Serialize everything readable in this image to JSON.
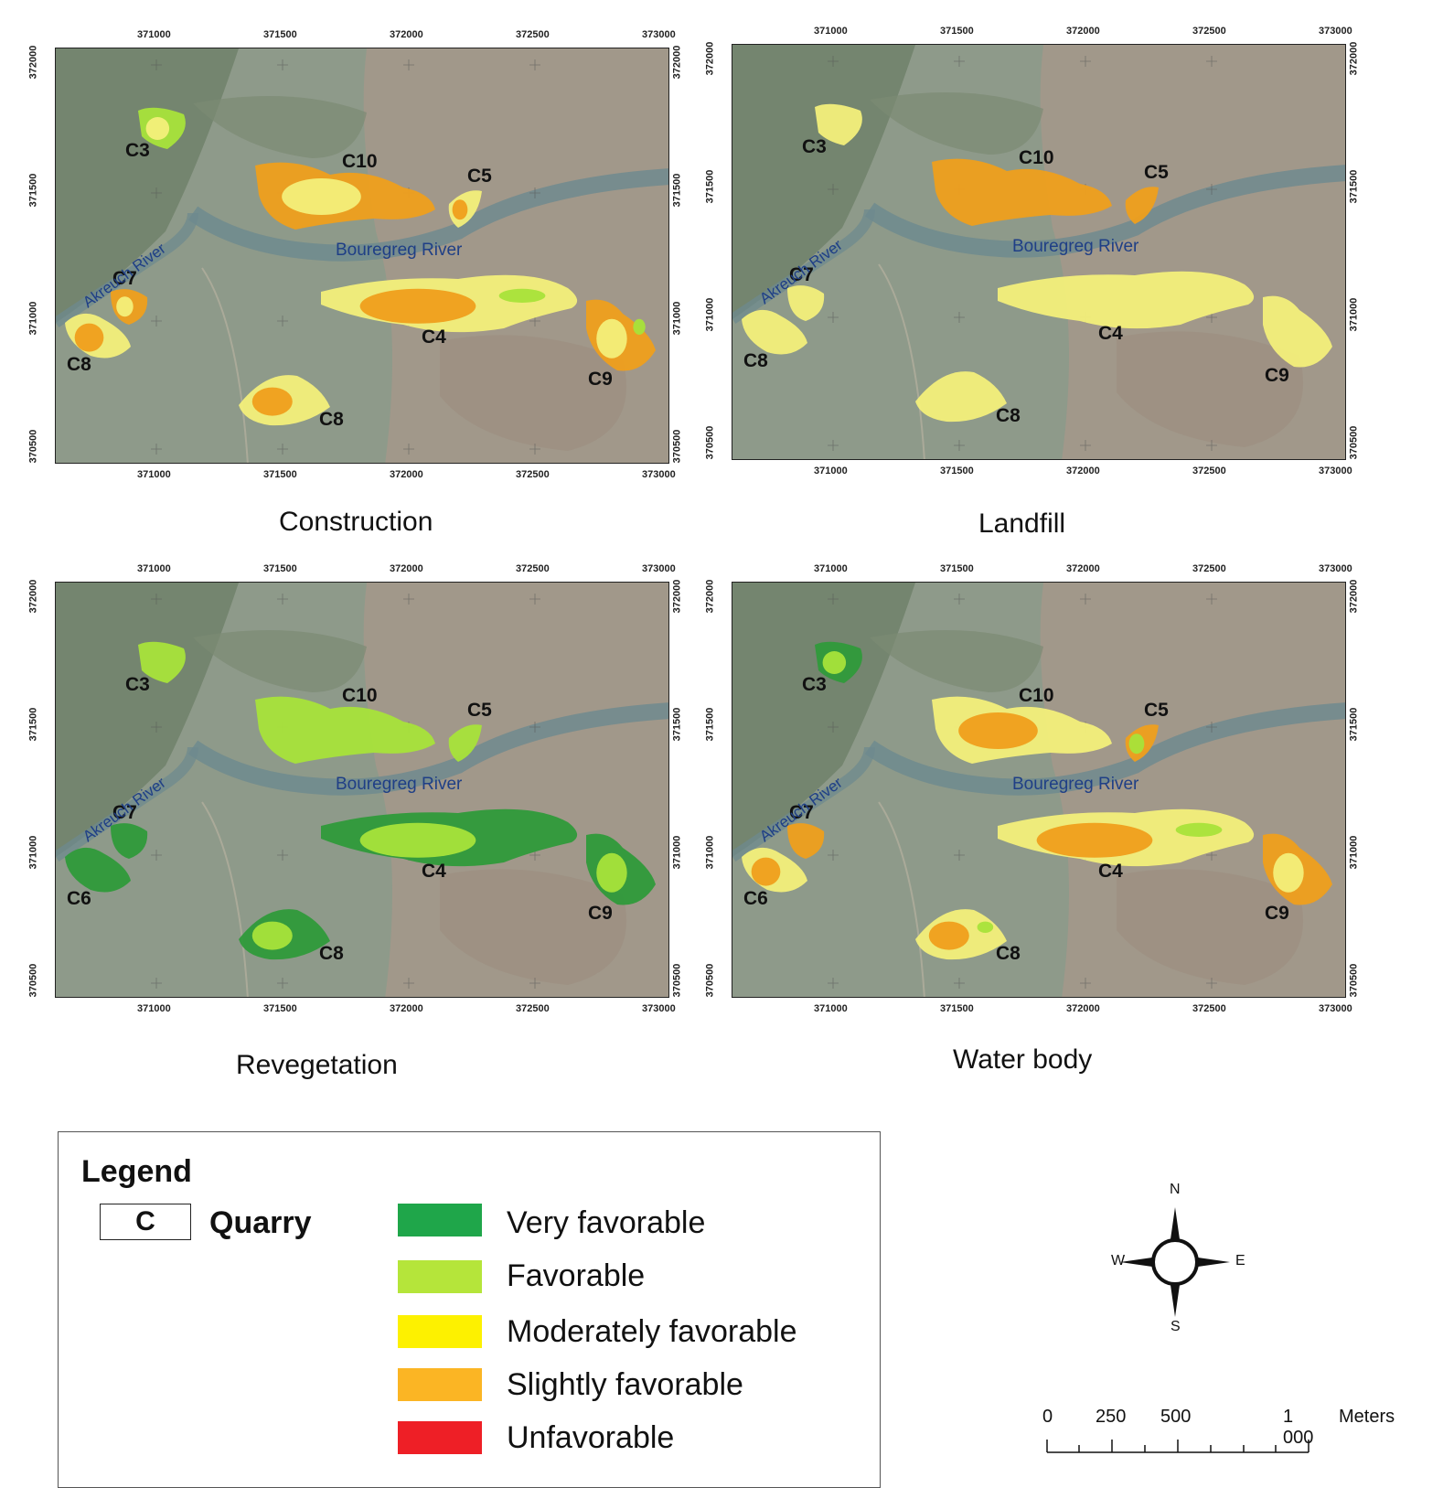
{
  "panels": [
    {
      "title": "Construction",
      "x_ticks": [
        "371000",
        "371500",
        "372000",
        "372500",
        "373000"
      ],
      "y_ticks": [
        "372000",
        "371500",
        "371000",
        "370500"
      ],
      "rivers": {
        "akreuch": "Akreuch River",
        "bouregreg": "Bouregreg River"
      },
      "quarries": [
        {
          "label": "C3",
          "classes": [
            "Favorable",
            "Moderately favorable"
          ]
        },
        {
          "label": "C10",
          "classes": [
            "Slightly favorable",
            "Moderately favorable"
          ]
        },
        {
          "label": "C5",
          "classes": [
            "Moderately favorable",
            "Slightly favorable"
          ]
        },
        {
          "label": "C7",
          "classes": [
            "Slightly favorable",
            "Moderately favorable"
          ]
        },
        {
          "label": "C8",
          "classes": [
            "Moderately favorable",
            "Slightly favorable"
          ]
        },
        {
          "label": "C4",
          "classes": [
            "Moderately favorable",
            "Slightly favorable",
            "Favorable"
          ]
        },
        {
          "label": "C9",
          "classes": [
            "Slightly favorable",
            "Moderately favorable",
            "Favorable"
          ]
        },
        {
          "label": "C8",
          "classes": [
            "Moderately favorable",
            "Slightly favorable"
          ]
        }
      ]
    },
    {
      "title": "Landfill",
      "x_ticks": [
        "371000",
        "371500",
        "372000",
        "372500",
        "373000"
      ],
      "y_ticks": [
        "372000",
        "371500",
        "371000",
        "370500"
      ],
      "rivers": {
        "akreuch": "Akreuch River",
        "bouregreg": "Bouregreg River"
      },
      "quarries": [
        {
          "label": "C3",
          "classes": [
            "Moderately favorable"
          ]
        },
        {
          "label": "C10",
          "classes": [
            "Slightly favorable"
          ]
        },
        {
          "label": "C5",
          "classes": [
            "Slightly favorable"
          ]
        },
        {
          "label": "C7",
          "classes": [
            "Moderately favorable"
          ]
        },
        {
          "label": "C8",
          "classes": [
            "Moderately favorable"
          ]
        },
        {
          "label": "C4",
          "classes": [
            "Moderately favorable"
          ]
        },
        {
          "label": "C9",
          "classes": [
            "Moderately favorable"
          ]
        },
        {
          "label": "C8",
          "classes": [
            "Moderately favorable"
          ]
        }
      ]
    },
    {
      "title": "Revegetation",
      "x_ticks": [
        "371000",
        "371500",
        "372000",
        "372500",
        "373000"
      ],
      "y_ticks": [
        "372000",
        "371500",
        "371000",
        "370500"
      ],
      "rivers": {
        "akreuch": "Akreuch River",
        "bouregreg": "Bouregreg River"
      },
      "quarries": [
        {
          "label": "C3",
          "classes": [
            "Favorable"
          ]
        },
        {
          "label": "C10",
          "classes": [
            "Favorable"
          ]
        },
        {
          "label": "C5",
          "classes": [
            "Favorable"
          ]
        },
        {
          "label": "C7",
          "classes": [
            "Very favorable"
          ]
        },
        {
          "label": "C6",
          "classes": [
            "Very favorable"
          ]
        },
        {
          "label": "C4",
          "classes": [
            "Very favorable",
            "Favorable"
          ]
        },
        {
          "label": "C9",
          "classes": [
            "Very favorable",
            "Favorable"
          ]
        },
        {
          "label": "C8",
          "classes": [
            "Very favorable",
            "Favorable"
          ]
        }
      ]
    },
    {
      "title": "Water body",
      "x_ticks": [
        "371000",
        "371500",
        "372000",
        "372500",
        "373000"
      ],
      "y_ticks": [
        "372000",
        "371500",
        "371000",
        "370500"
      ],
      "rivers": {
        "akreuch": "Akreuch River",
        "bouregreg": "Bouregreg River"
      },
      "quarries": [
        {
          "label": "C3",
          "classes": [
            "Very favorable",
            "Favorable"
          ]
        },
        {
          "label": "C10",
          "classes": [
            "Moderately favorable",
            "Slightly favorable"
          ]
        },
        {
          "label": "C5",
          "classes": [
            "Slightly favorable",
            "Favorable"
          ]
        },
        {
          "label": "C7",
          "classes": [
            "Slightly favorable"
          ]
        },
        {
          "label": "C6",
          "classes": [
            "Moderately favorable",
            "Slightly favorable"
          ]
        },
        {
          "label": "C4",
          "classes": [
            "Moderately favorable",
            "Slightly favorable",
            "Favorable"
          ]
        },
        {
          "label": "C9",
          "classes": [
            "Slightly favorable",
            "Moderately favorable"
          ]
        },
        {
          "label": "C8",
          "classes": [
            "Moderately favorable",
            "Slightly favorable",
            "Favorable"
          ]
        }
      ]
    }
  ],
  "legend": {
    "title": "Legend",
    "quarry_symbol": "C",
    "quarry_label": "Quarry",
    "classes": [
      {
        "name": "Very favorable",
        "color": "#1fa64a"
      },
      {
        "name": "Favorable",
        "color": "#b5e53a"
      },
      {
        "name": "Moderately favorable",
        "color": "#fdf100"
      },
      {
        "name": "Slightly favorable",
        "color": "#fbb524"
      },
      {
        "name": "Unfavorable",
        "color": "#ee1f26"
      }
    ]
  },
  "compass": {
    "n": "N",
    "s": "S",
    "e": "E",
    "w": "W"
  },
  "scale": {
    "labels": [
      "0",
      "250",
      "500",
      "1 000"
    ],
    "unit": "Meters"
  },
  "colors": {
    "very_favorable": "#2f9a3a",
    "favorable": "#a8e33a",
    "moderately_favorable": "#f3ef7a",
    "slightly_favorable": "#ef9f1c"
  }
}
